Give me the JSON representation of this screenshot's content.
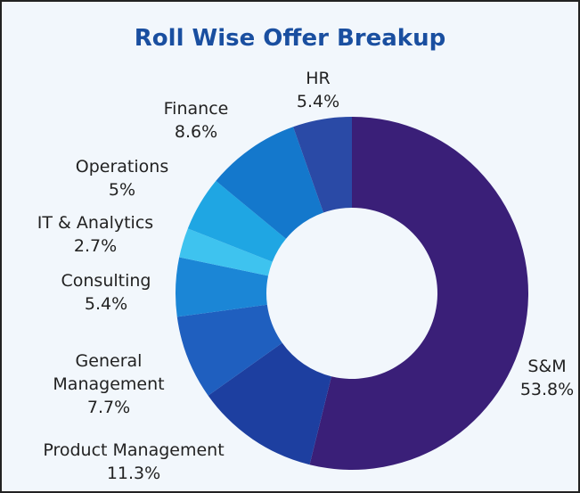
{
  "chart_data": {
    "type": "donut",
    "title": "Roll Wise Offer Breakup",
    "categories": [
      "S&M",
      "Product Management",
      "General Management",
      "Consulting",
      "IT & Analytics",
      "Operations",
      "Finance",
      "HR"
    ],
    "values": [
      53.8,
      11.3,
      7.7,
      5.4,
      2.7,
      5,
      8.6,
      5.4
    ],
    "value_labels": [
      "53.8%",
      "11.3%",
      "7.7%",
      "5.4%",
      "2.7%",
      "5%",
      "8.6%",
      "5.4%"
    ],
    "colors": [
      "#3a1f78",
      "#1d3fa0",
      "#1f5fbf",
      "#1b86d6",
      "#3ec3ef",
      "#1fa6e3",
      "#1478cc",
      "#2a4aa6"
    ]
  }
}
